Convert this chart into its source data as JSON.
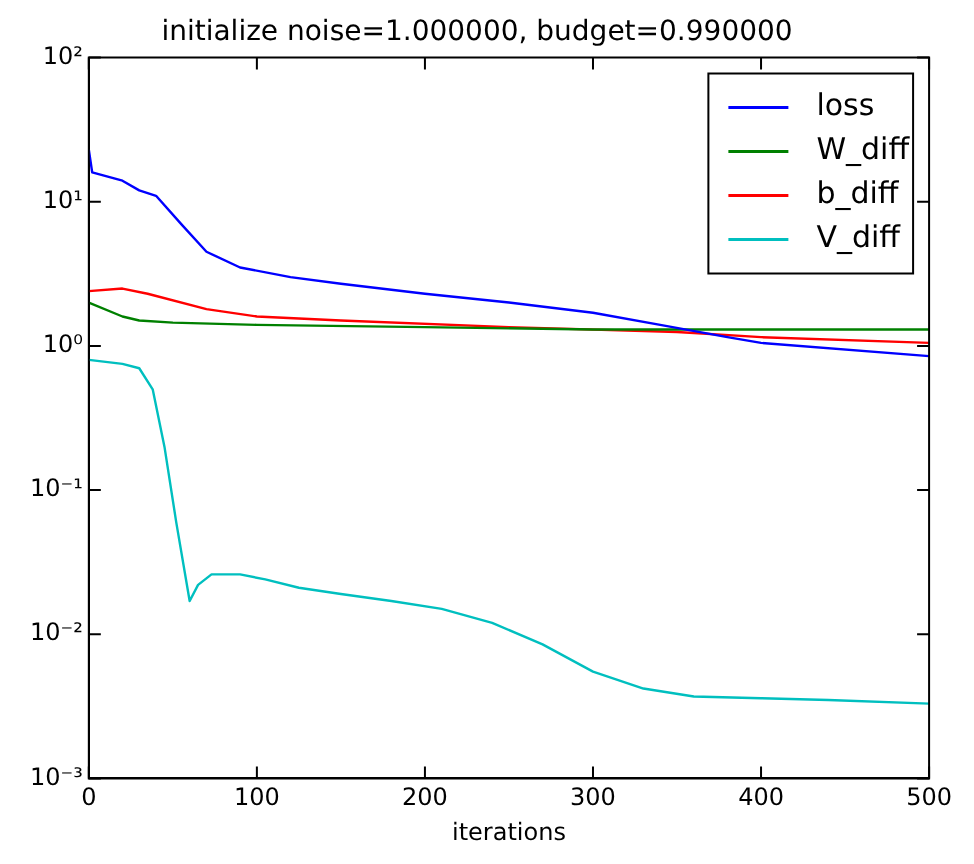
{
  "chart_data": {
    "type": "line",
    "title": "initialize noise=1.000000, budget=0.990000",
    "xlabel": "iterations",
    "xlim": [
      0,
      500
    ],
    "xticks": [
      0,
      100,
      200,
      300,
      400,
      500
    ],
    "ylim": [
      0.001,
      100
    ],
    "yticks": [
      {
        "value": 0.001,
        "label": "10⁻³"
      },
      {
        "value": 0.01,
        "label": "10⁻²"
      },
      {
        "value": 0.1,
        "label": "10⁻¹"
      },
      {
        "value": 1,
        "label": "10⁰"
      },
      {
        "value": 10,
        "label": "10¹"
      },
      {
        "value": 100,
        "label": "10²"
      }
    ],
    "log": "y",
    "grid": false,
    "legend": "top right",
    "marker": "none",
    "line_style": "solid",
    "series": [
      {
        "name": "loss",
        "color": "#0000ff",
        "x": [
          0,
          2,
          20,
          30,
          40,
          55,
          70,
          90,
          120,
          150,
          200,
          250,
          300,
          340,
          380,
          400,
          500
        ],
        "values": [
          23,
          16,
          14,
          12,
          11,
          7,
          4.5,
          3.5,
          3,
          2.7,
          2.3,
          2,
          1.7,
          1.4,
          1.15,
          1.05,
          0.85
        ]
      },
      {
        "name": "W_diff",
        "color": "#008000",
        "x": [
          0,
          20,
          30,
          50,
          100,
          200,
          300,
          500
        ],
        "values": [
          2,
          1.6,
          1.5,
          1.45,
          1.4,
          1.35,
          1.3,
          1.3
        ]
      },
      {
        "name": "b_diff",
        "color": "#ff0000",
        "x": [
          0,
          20,
          35,
          70,
          100,
          150,
          250,
          350,
          400,
          500
        ],
        "values": [
          2.4,
          2.5,
          2.3,
          1.8,
          1.6,
          1.5,
          1.35,
          1.25,
          1.15,
          1.05
        ]
      },
      {
        "name": "V_diff",
        "color": "#00bfbf",
        "x": [
          0,
          20,
          30,
          38,
          45,
          52,
          60,
          65,
          73,
          90,
          105,
          125,
          150,
          180,
          210,
          240,
          270,
          300,
          330,
          360,
          400,
          440,
          500
        ],
        "values": [
          0.8,
          0.75,
          0.7,
          0.5,
          0.2,
          0.06,
          0.017,
          0.022,
          0.026,
          0.026,
          0.024,
          0.021,
          0.019,
          0.017,
          0.015,
          0.012,
          0.0085,
          0.0055,
          0.0042,
          0.0037,
          0.0036,
          0.0035,
          0.0033
        ]
      }
    ]
  }
}
